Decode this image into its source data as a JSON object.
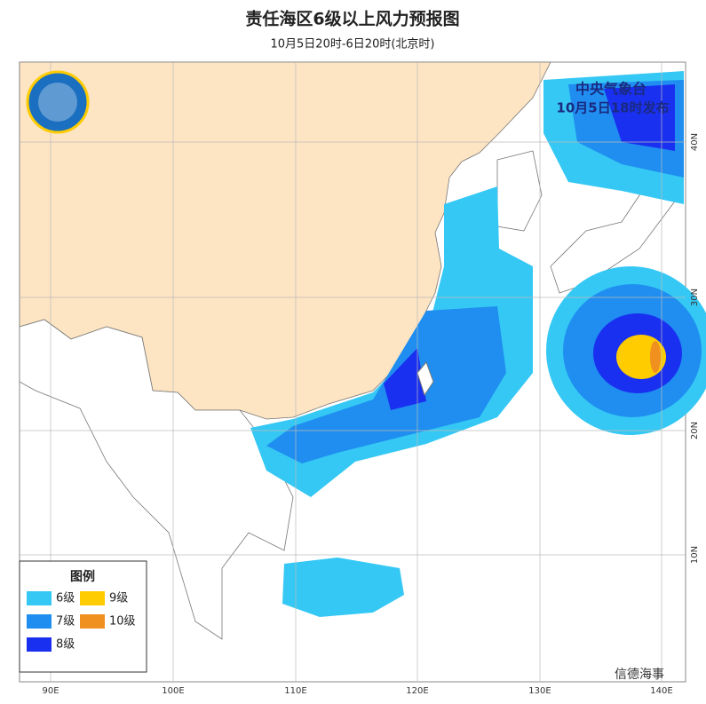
{
  "header": {
    "title": "责任海区6级以上风力预报图",
    "subtitle": "10月5日20时-6日20时(北京时)"
  },
  "issuer": {
    "name": "中央气象台",
    "time": "10月5日18时发布"
  },
  "legend": {
    "title": "图例",
    "items": [
      {
        "label": "6级",
        "color": "#35c8f4"
      },
      {
        "label": "9级",
        "color": "#ffcc00"
      },
      {
        "label": "7级",
        "color": "#1f8ef0"
      },
      {
        "label": "10级",
        "color": "#f0901e"
      },
      {
        "label": "8级",
        "color": "#1a30f0"
      }
    ]
  },
  "axes": {
    "longitudes": [
      "90E",
      "100E",
      "110E",
      "120E",
      "130E",
      "140E"
    ],
    "latitudes": [
      "40N",
      "30N",
      "20N",
      "10N"
    ]
  },
  "watermark": "信德海事"
}
